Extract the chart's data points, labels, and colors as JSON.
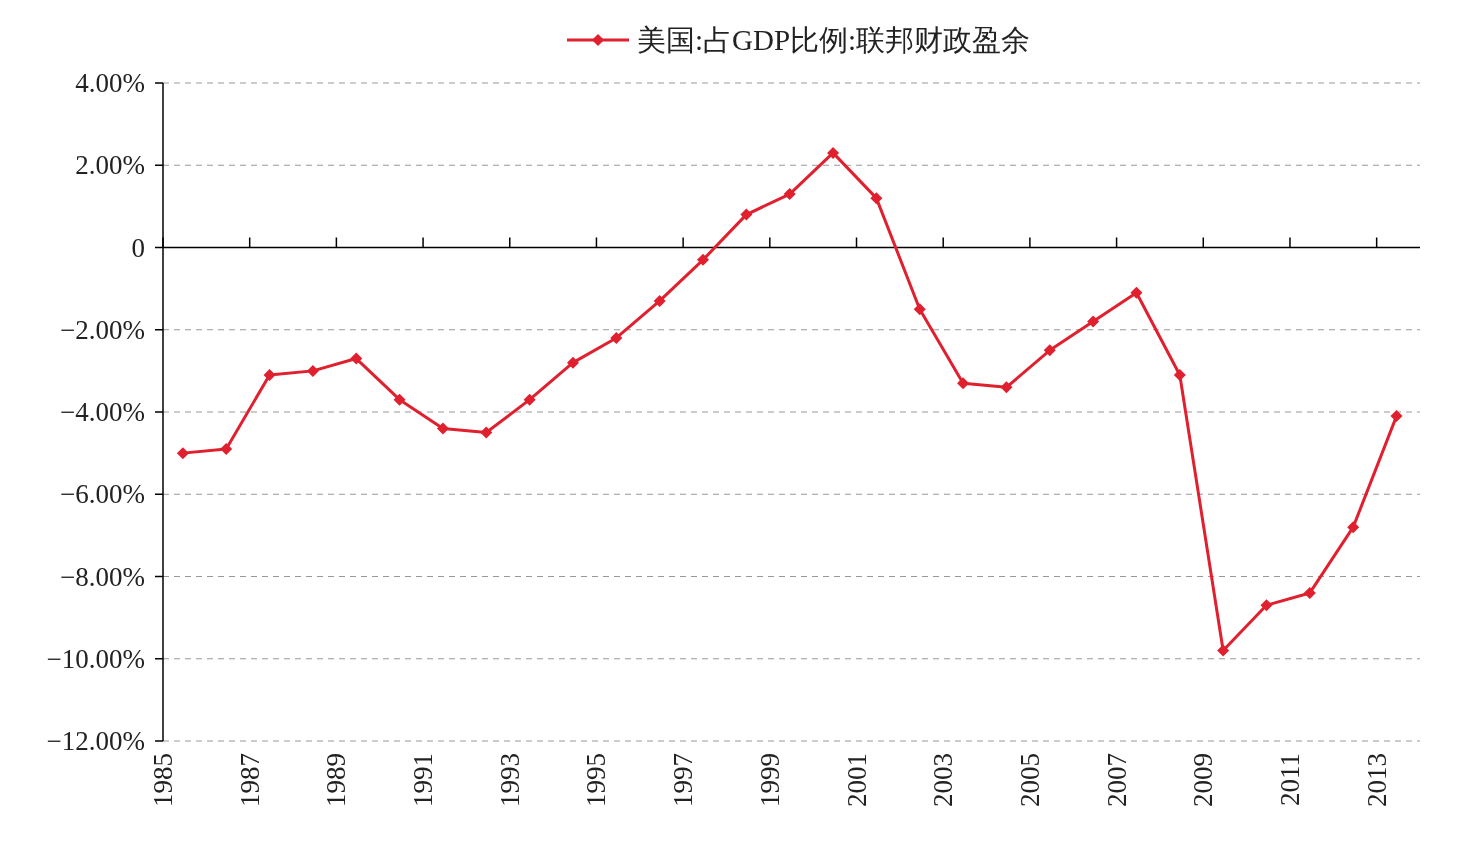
{
  "chart_data": {
    "type": "line",
    "x": [
      "1985-06",
      "1986-06",
      "1987-06",
      "1988-06",
      "1989-06",
      "1990-06",
      "1991-06",
      "1992-06",
      "1993-06",
      "1994-06",
      "1995-06",
      "1996-06",
      "1997-06",
      "1998-06",
      "1999-06",
      "2000-06",
      "2001-06",
      "2002-06",
      "2003-06",
      "2004-06",
      "2005-06",
      "2006-06",
      "2007-06",
      "2008-06",
      "2009-06",
      "2010-06",
      "2011-06",
      "2012-06",
      "2013-06"
    ],
    "series": [
      {
        "name": "美国:占GDP比例:联邦财政盈余",
        "color": "#e0202e",
        "values": [
          -5.0,
          -4.9,
          -3.1,
          -3.0,
          -2.7,
          -3.7,
          -4.4,
          -4.5,
          -3.7,
          -2.8,
          -2.2,
          -1.3,
          -0.3,
          0.8,
          1.3,
          2.3,
          1.2,
          -1.5,
          -3.3,
          -3.4,
          -2.5,
          -1.8,
          -1.1,
          -3.1,
          -9.8,
          -8.7,
          -8.4,
          -6.8,
          -4.1
        ]
      }
    ],
    "xlim": [
      "1985",
      "2014"
    ],
    "xticks": [
      "1985",
      "1987",
      "1989",
      "1991",
      "1993",
      "1995",
      "1997",
      "1999",
      "2001",
      "2003",
      "2005",
      "2007",
      "2009",
      "2011",
      "2013"
    ],
    "ylim": [
      -12,
      4
    ],
    "yticks": [
      {
        "value": 4,
        "label": "4.00%"
      },
      {
        "value": 2,
        "label": "2.00%"
      },
      0,
      {
        "value": -2,
        "label": "−2.00%"
      },
      {
        "value": -4,
        "label": "−4.00%"
      },
      {
        "value": -6,
        "label": "−6.00%"
      },
      {
        "value": -8,
        "label": "−8.00%"
      },
      {
        "value": -10,
        "label": "−10.00%"
      },
      {
        "value": -12,
        "label": "−12.00%"
      }
    ],
    "grid": "y",
    "legend": "top",
    "marker": "diamond",
    "line_style": "solid"
  }
}
